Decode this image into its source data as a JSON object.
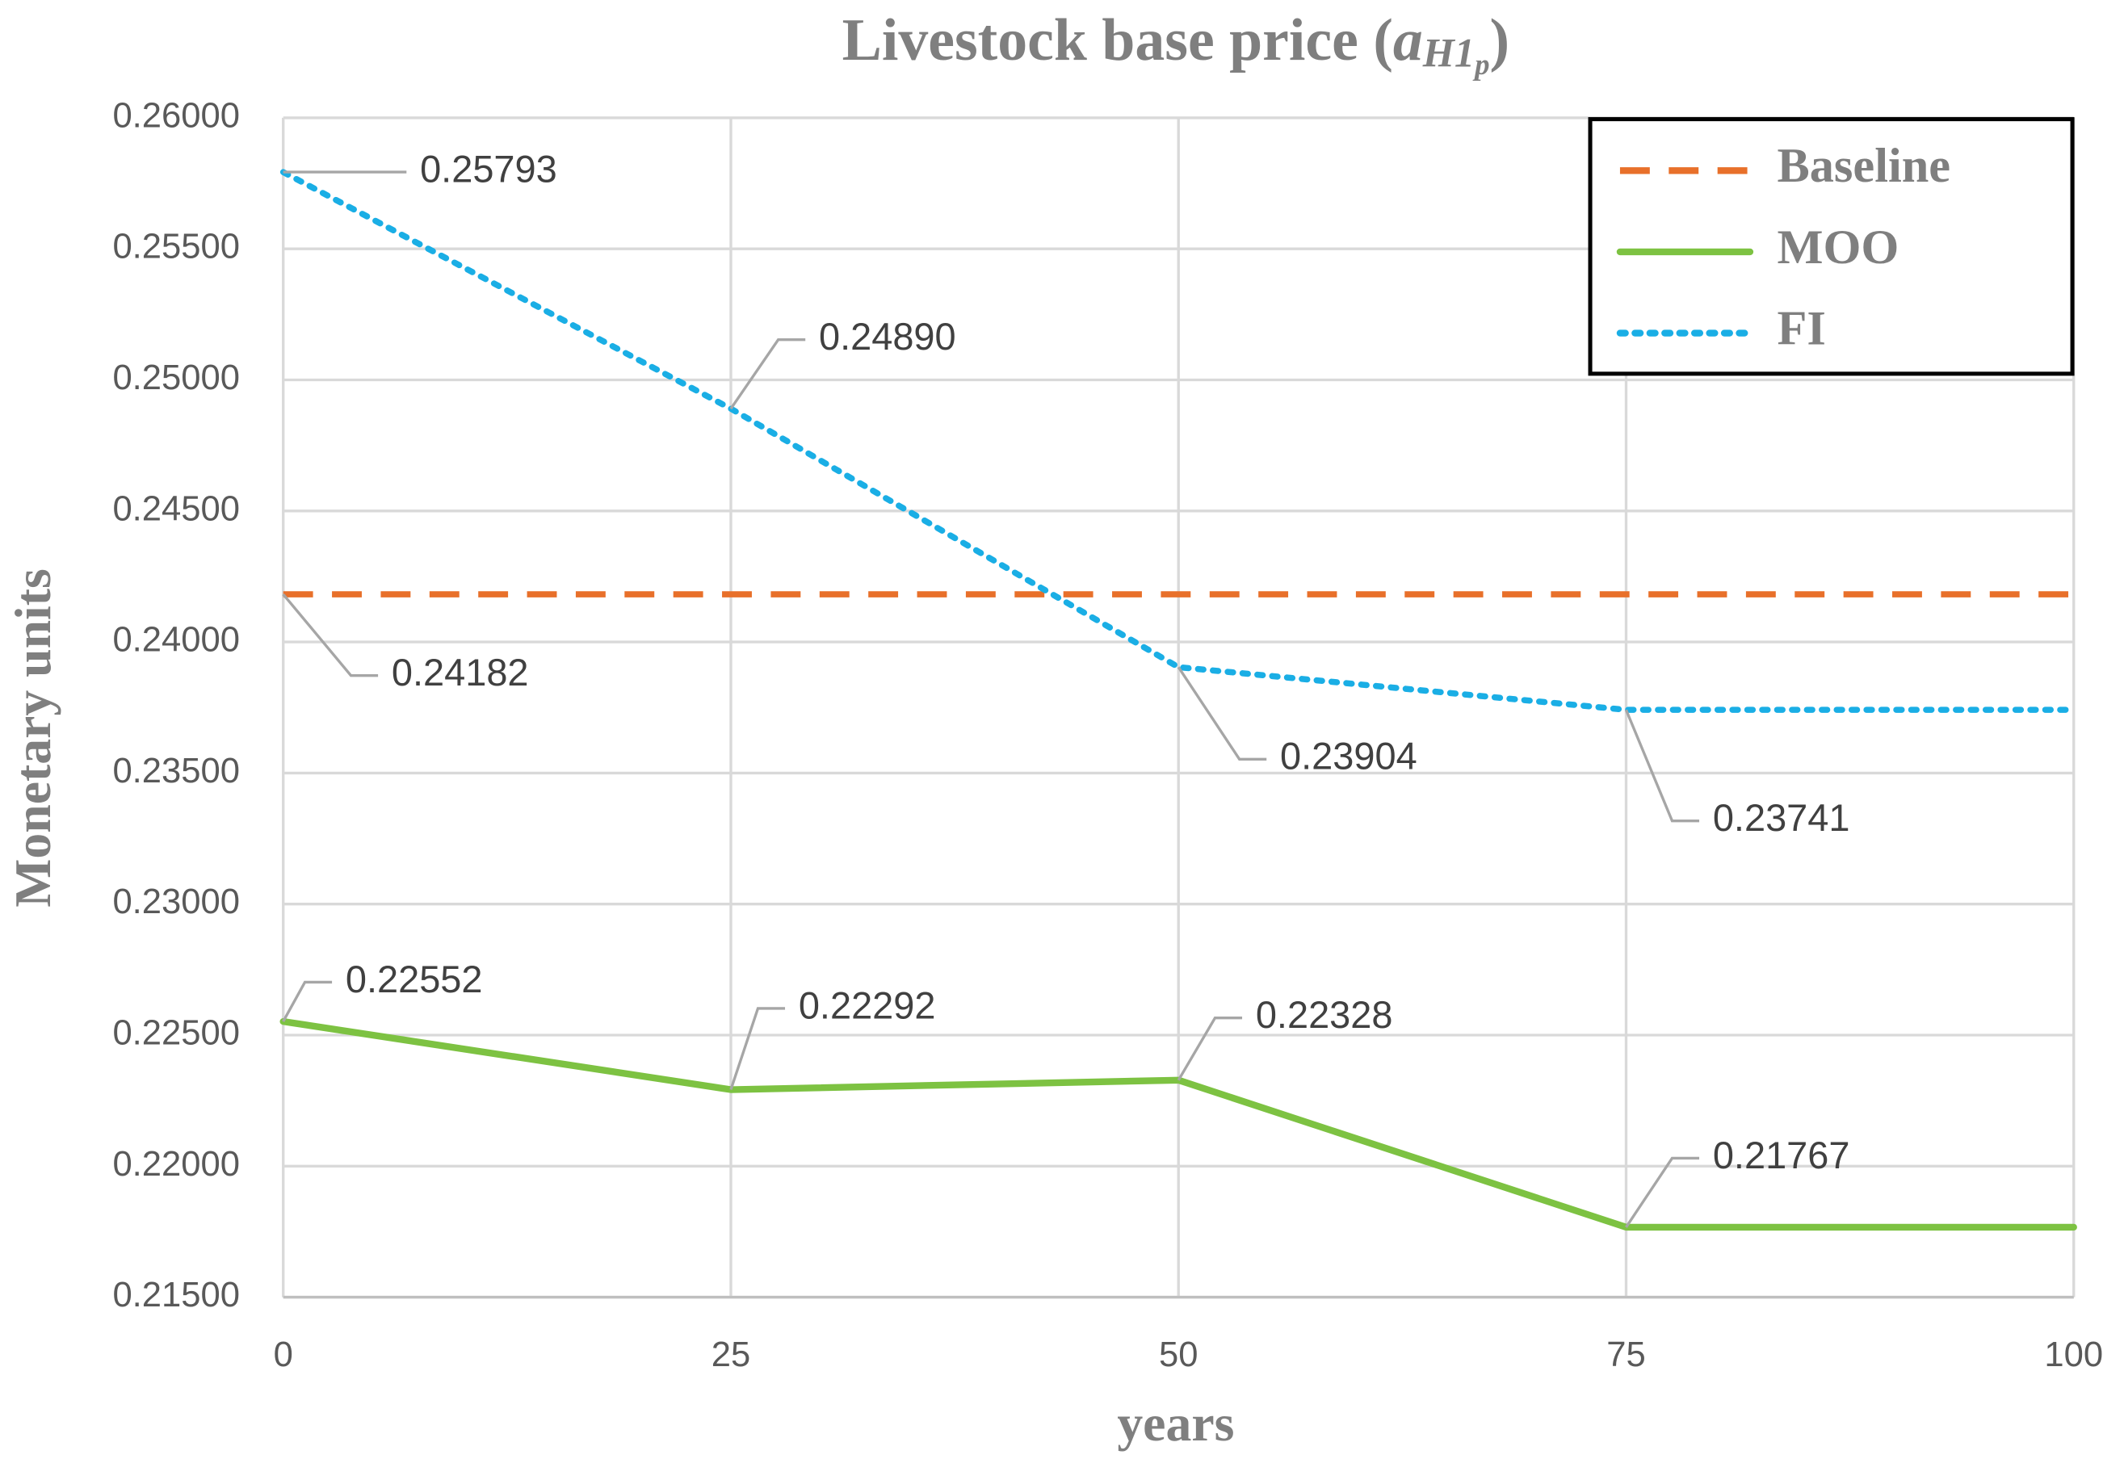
{
  "chart_data": {
    "type": "line",
    "title": [
      "Livestock base price (",
      "a",
      "H1",
      "p",
      ")"
    ],
    "x_label": "years",
    "y_label": "Monetary units",
    "x": [
      0,
      25,
      50,
      75,
      100
    ],
    "xlim": [
      0,
      100
    ],
    "xticks": [
      0,
      25,
      50,
      75,
      100
    ],
    "ylim": [
      0.215,
      0.26
    ],
    "yticks": [
      {
        "value": 0.215,
        "label": "0.21500"
      },
      {
        "value": 0.22,
        "label": "0.22000"
      },
      {
        "value": 0.225,
        "label": "0.22500"
      },
      {
        "value": 0.23,
        "label": "0.23000"
      },
      {
        "value": 0.235,
        "label": "0.23500"
      },
      {
        "value": 0.24,
        "label": "0.24000"
      },
      {
        "value": 0.245,
        "label": "0.24500"
      },
      {
        "value": 0.25,
        "label": "0.25000"
      },
      {
        "value": 0.255,
        "label": "0.25500"
      },
      {
        "value": 0.26,
        "label": "0.26000"
      }
    ],
    "grid": true,
    "legend": "upper right",
    "series": [
      {
        "name": "Baseline",
        "color": "#e8702a",
        "style": "dashed",
        "values": [
          0.24182,
          0.24182,
          0.24182,
          0.24182,
          0.24182
        ],
        "value_labels": [
          "0.24182",
          null,
          null,
          null,
          null
        ]
      },
      {
        "name": "MOO",
        "color": "#7dc242",
        "style": "solid",
        "values": [
          0.22552,
          0.22292,
          0.22328,
          0.21767,
          0.21767
        ],
        "value_labels": [
          "0.22552",
          "0.22292",
          "0.22328",
          "0.21767",
          null
        ]
      },
      {
        "name": "FI",
        "color": "#1aaee5",
        "style": "dotted",
        "values": [
          0.25793,
          0.2489,
          0.23904,
          0.23741,
          0.23741
        ],
        "value_labels": [
          "0.25793",
          "0.24890",
          "0.23904",
          "0.23741",
          null
        ]
      }
    ]
  }
}
